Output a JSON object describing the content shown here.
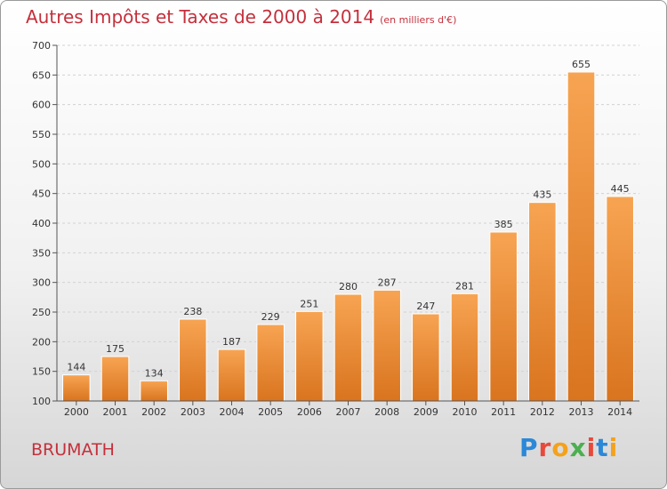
{
  "title": "Autres Impôts et Taxes de 2000 à 2014",
  "subtitle": "(en milliers d'€)",
  "city": "BRUMATH",
  "brand": "Proxiti",
  "colors": {
    "title": "#c4303c",
    "bar_top": "#f7a452",
    "bar_bottom": "#d9741f",
    "brand_letters": [
      "#2b88d8",
      "#e8493a",
      "#f4a21b",
      "#4caf50",
      "#e8493a",
      "#2b88d8",
      "#f4a21b"
    ]
  },
  "chart_data": {
    "type": "bar",
    "title": "Autres Impôts et Taxes de 2000 à 2014",
    "subtitle": "(en milliers d'€)",
    "categories": [
      "2000",
      "2001",
      "2002",
      "2003",
      "2004",
      "2005",
      "2006",
      "2007",
      "2008",
      "2009",
      "2010",
      "2011",
      "2012",
      "2013",
      "2014"
    ],
    "values": [
      144,
      175,
      134,
      238,
      187,
      229,
      251,
      280,
      287,
      247,
      281,
      385,
      435,
      655,
      445
    ],
    "ylim": [
      100,
      700
    ],
    "yticks": [
      100,
      150,
      200,
      250,
      300,
      350,
      400,
      450,
      500,
      550,
      600,
      650,
      700
    ],
    "grid": true,
    "data_labels": true
  }
}
